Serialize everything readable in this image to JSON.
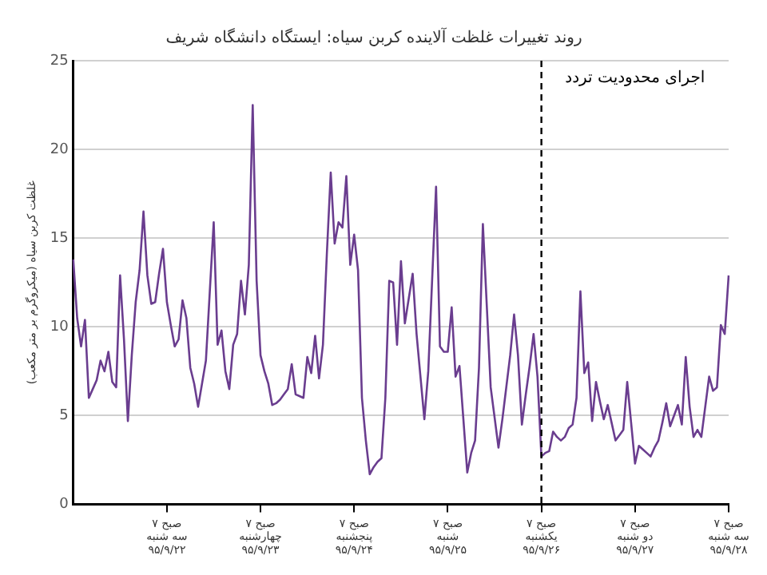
{
  "chart_data": {
    "type": "line",
    "title": "روند تغییرات غلظت آلاینده کربن سیاه: ایستگاه دانشگاه شریف",
    "ylabel": "غلظت کربن سیاه (میکروگرم بر متر مکعب)",
    "categories": [
      null,
      null,
      null,
      null,
      null,
      null,
      null,
      null,
      null,
      null,
      null,
      null,
      null,
      null,
      null,
      null,
      null,
      null,
      null,
      null,
      null,
      null,
      null,
      null,
      "۷ صبح\nسه شنبه\n۹۵/۹/۲۲",
      null,
      null,
      null,
      null,
      null,
      null,
      null,
      null,
      null,
      null,
      null,
      null,
      null,
      null,
      null,
      null,
      null,
      null,
      null,
      null,
      null,
      null,
      null,
      "۷ صبح\nچهارشنبه\n۹۵/۹/۲۳",
      null,
      null,
      null,
      null,
      null,
      null,
      null,
      null,
      null,
      null,
      null,
      null,
      null,
      null,
      null,
      null,
      null,
      null,
      null,
      null,
      null,
      null,
      null,
      "۷ صبح\nپنجشنبه\n۹۵/۹/۲۴",
      null,
      null,
      null,
      null,
      null,
      null,
      null,
      null,
      null,
      null,
      null,
      null,
      null,
      null,
      null,
      null,
      null,
      null,
      null,
      null,
      null,
      null,
      null,
      "۷ صبح\nشنبه\n۹۵/۹/۲۵",
      null,
      null,
      null,
      null,
      null,
      null,
      null,
      null,
      null,
      null,
      null,
      null,
      null,
      null,
      null,
      null,
      null,
      null,
      null,
      null,
      null,
      null,
      null,
      "۷ صبح\nیکشنبه\n۹۵/۹/۲۶",
      null,
      null,
      null,
      null,
      null,
      null,
      null,
      null,
      null,
      null,
      null,
      null,
      null,
      null,
      null,
      null,
      null,
      null,
      null,
      null,
      null,
      null,
      null,
      "۷ صبح\nدو شنبه\n۹۵/۹/۲۷",
      null,
      null,
      null,
      null,
      null,
      null,
      null,
      null,
      null,
      null,
      null,
      null,
      null,
      null,
      null,
      null,
      null,
      null,
      null,
      null,
      null,
      null,
      null,
      "۷ صبح\nسه شنبه\n۹۵/۹/۲۸"
    ],
    "ylim": [
      0,
      25
    ],
    "yticks": [
      0,
      5,
      10,
      15,
      20,
      25
    ],
    "grid": "y",
    "marker": "none",
    "line_style": "solid",
    "ref_lines": [
      {
        "axis": "x",
        "value": "۷ صبح\nیکشنبه\n۹۵/۹/۲۶",
        "label": "اجرای محدودیت تردد",
        "color": "#000000",
        "line_style": "dashed"
      }
    ],
    "series": [
      {
        "color": "#6a3d8f",
        "values": [
          13.8,
          10.5,
          8.9,
          10.4,
          6.0,
          6.5,
          7.0,
          8.1,
          7.5,
          8.6,
          6.9,
          6.6,
          12.9,
          9.3,
          4.7,
          8.4,
          11.4,
          13.2,
          16.5,
          12.9,
          11.3,
          11.4,
          13.0,
          14.4,
          11.4,
          10.1,
          8.9,
          9.3,
          11.5,
          10.5,
          7.7,
          6.8,
          5.5,
          6.8,
          8.1,
          12.0,
          15.9,
          9.0,
          9.8,
          7.5,
          6.5,
          9.0,
          9.6,
          12.6,
          10.7,
          13.5,
          22.5,
          12.6,
          8.4,
          7.5,
          6.8,
          5.6,
          5.7,
          5.9,
          6.2,
          6.5,
          7.9,
          6.2,
          6.1,
          6.0,
          8.3,
          7.4,
          9.5,
          7.1,
          9.0,
          14.1,
          18.7,
          14.7,
          15.9,
          15.6,
          18.5,
          13.5,
          15.2,
          13.2,
          6.0,
          3.6,
          1.7,
          2.1,
          2.4,
          2.6,
          6.0,
          12.6,
          12.5,
          9.0,
          13.7,
          10.2,
          11.6,
          13.0,
          9.6,
          7.2,
          4.8,
          7.5,
          12.7,
          17.9,
          8.9,
          8.6,
          8.6,
          11.1,
          7.2,
          7.8,
          4.8,
          1.8,
          2.9,
          3.6,
          7.7,
          15.8,
          11.2,
          6.6,
          4.9,
          3.2,
          4.8,
          6.6,
          8.4,
          10.7,
          8.4,
          4.5,
          6.2,
          7.8,
          9.6,
          7.2,
          2.7,
          2.9,
          3.0,
          4.1,
          3.8,
          3.6,
          3.8,
          4.3,
          4.5,
          6.0,
          12.0,
          7.4,
          8.0,
          4.7,
          6.9,
          5.8,
          4.8,
          5.6,
          4.6,
          3.6,
          3.9,
          4.2,
          6.9,
          4.6,
          2.3,
          3.3,
          3.1,
          2.9,
          2.7,
          3.2,
          3.6,
          4.6,
          5.7,
          4.4,
          5.0,
          5.6,
          4.5,
          8.3,
          5.5,
          3.8,
          4.2,
          3.8,
          5.5,
          7.2,
          6.4,
          6.6,
          10.1,
          9.6,
          12.9
        ]
      }
    ]
  }
}
